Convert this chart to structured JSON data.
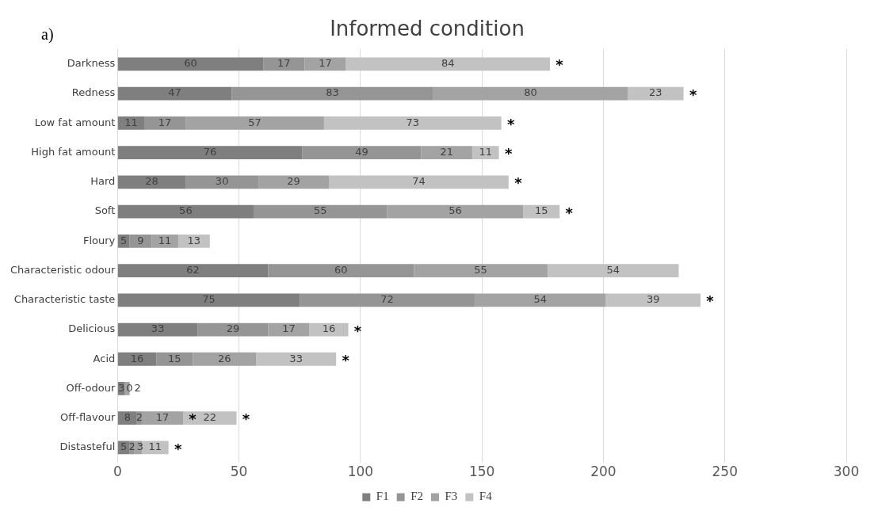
{
  "chart_data": {
    "type": "bar",
    "orientation": "horizontal",
    "stacked": true,
    "title": "Informed condition",
    "categories": [
      "Darkness",
      "Redness",
      "Low fat amount",
      "High fat amount",
      "Hard",
      "Soft",
      "Floury",
      "Characteristic odour",
      "Characteristic taste",
      "Delicious",
      "Acid",
      "Off-odour",
      "Off-flavour",
      "Distasteful"
    ],
    "series": [
      {
        "name": "F1",
        "color": "#7f7f7f",
        "values": [
          60,
          47,
          11,
          76,
          28,
          56,
          5,
          62,
          75,
          33,
          16,
          3,
          8,
          5
        ]
      },
      {
        "name": "F2",
        "color": "#959595",
        "values": [
          17,
          83,
          17,
          49,
          30,
          55,
          9,
          60,
          72,
          29,
          15,
          0,
          2,
          2
        ]
      },
      {
        "name": "F3",
        "color": "#a3a3a3",
        "values": [
          17,
          80,
          57,
          21,
          29,
          56,
          11,
          55,
          54,
          17,
          26,
          2,
          17,
          3
        ]
      },
      {
        "name": "F4",
        "color": "#c2c2c2",
        "values": [
          84,
          23,
          73,
          11,
          74,
          15,
          13,
          54,
          39,
          16,
          33,
          null,
          22,
          11
        ]
      }
    ],
    "data_labels": true,
    "xlim": [
      0,
      300
    ],
    "xticks": [
      0,
      50,
      100,
      150,
      200,
      250,
      300
    ],
    "grid": "x",
    "legend": "bottom",
    "annotations": [
      "a)",
      {
        "text": "*",
        "x": 178,
        "y": "Darkness"
      },
      {
        "text": "*",
        "x": 233,
        "y": "Redness"
      },
      {
        "text": "*",
        "x": 158,
        "y": "Low fat amount"
      },
      {
        "text": "*",
        "x": 157,
        "y": "High fat amount"
      },
      {
        "text": "*",
        "x": 161,
        "y": "Hard"
      },
      {
        "text": "*",
        "x": 182,
        "y": "Soft"
      },
      {
        "text": "*",
        "x": 240,
        "y": "Characteristic taste"
      },
      {
        "text": "*",
        "x": 95,
        "y": "Delicious"
      },
      {
        "text": "*",
        "x": 90,
        "y": "Acid"
      },
      {
        "text": "*",
        "x": 27,
        "y": "Off-flavour"
      },
      {
        "text": "*",
        "x": 49,
        "y": "Off-flavour"
      },
      {
        "text": "*",
        "x": 21,
        "y": "Distasteful"
      }
    ]
  }
}
